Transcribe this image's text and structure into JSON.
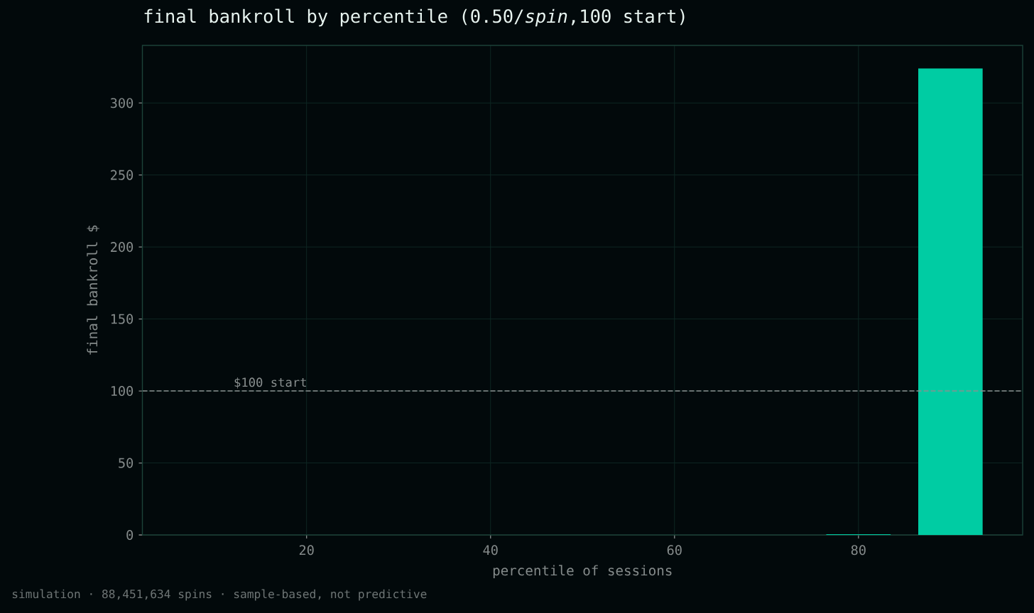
{
  "chart_data": {
    "type": "bar",
    "title": "final bankroll by percentile (0.50/*spin*,100 start)",
    "xlabel": "percentile of sessions",
    "ylabel": "final bankroll $",
    "x": [
      80,
      90
    ],
    "values": [
      0.5,
      324
    ],
    "color": "#00cca3",
    "xlim": [
      2.15,
      97.85
    ],
    "xticks": [
      20,
      40,
      60,
      80
    ],
    "ylim": [
      0,
      340
    ],
    "yticks": [
      0,
      50,
      100,
      150,
      200,
      250,
      300
    ],
    "grid": true,
    "ref_lines": [
      {
        "axis": "y",
        "value": 100,
        "label": "$100 start",
        "color": "#8a9090",
        "line_style": "dashed"
      }
    ],
    "annotations": [
      "simulation · 88,451,634 spins · sample-based, not predictive"
    ]
  }
}
